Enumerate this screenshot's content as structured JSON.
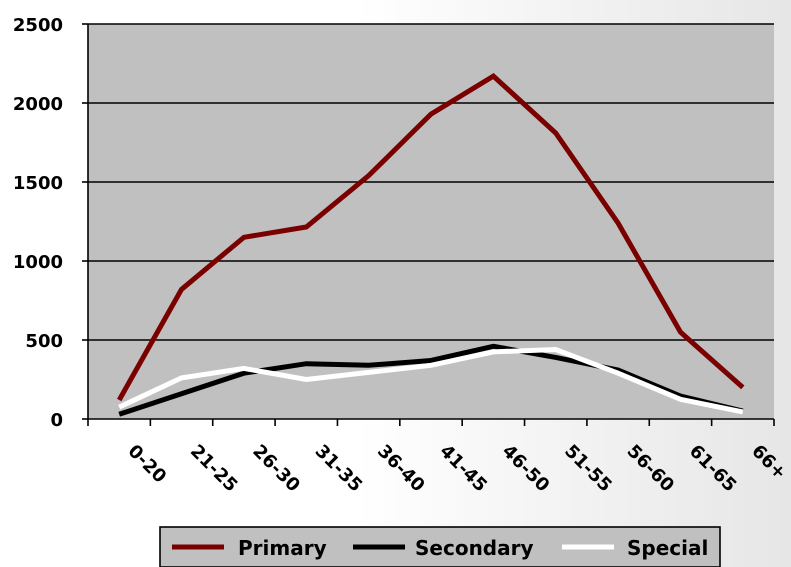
{
  "chart_data": {
    "type": "line",
    "categories": [
      "0-20",
      "21-25",
      "26-30",
      "31-35",
      "36-40",
      "41-45",
      "46-50",
      "51-55",
      "56-60",
      "61-65",
      "66+"
    ],
    "series": [
      {
        "name": "Primary",
        "color": "#7a0000",
        "values": [
          120,
          820,
          1150,
          1215,
          1540,
          1930,
          2170,
          1810,
          1240,
          550,
          200
        ]
      },
      {
        "name": "Secondary",
        "color": "#000000",
        "values": [
          30,
          160,
          290,
          350,
          340,
          370,
          460,
          390,
          310,
          145,
          50
        ]
      },
      {
        "name": "Special",
        "color": "#ffffff",
        "values": [
          75,
          260,
          320,
          250,
          295,
          340,
          425,
          440,
          290,
          125,
          45
        ]
      }
    ],
    "yticks": [
      0,
      500,
      1000,
      1500,
      2000,
      2500
    ],
    "ylim": [
      0,
      2500
    ],
    "grid": true,
    "plot_background": "#c0c0c0",
    "legend_position": "bottom"
  }
}
